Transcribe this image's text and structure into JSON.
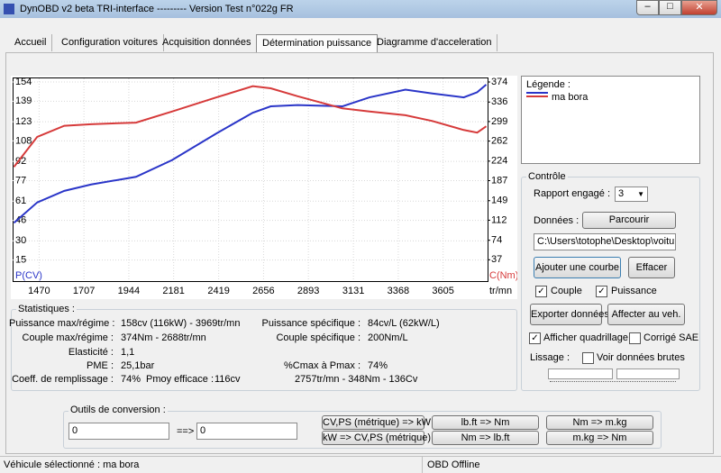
{
  "window": {
    "title": "DynOBD v2 beta TRI-interface --------- Version Test n°022g FR"
  },
  "tabs": [
    "Accueil",
    "Configuration voitures",
    "Acquisition données",
    "Détermination puissance",
    "Diagramme d'acceleration"
  ],
  "active_tab": 3,
  "chart_data": {
    "type": "line",
    "x": [
      1337,
      1460,
      1603,
      1745,
      1982,
      2172,
      2409,
      2599,
      2694,
      2836,
      3073,
      3216,
      3406,
      3548,
      3714,
      3785,
      3833
    ],
    "series": [
      {
        "name": "ma bora",
        "color": "#2a35c8",
        "values": [
          44,
          60,
          69,
          74,
          80,
          93,
          114,
          130,
          135,
          136,
          135,
          142,
          148,
          145,
          142,
          146,
          152
        ]
      },
      {
        "color": "#d63a3a",
        "axis": "y2",
        "values": [
          213,
          270,
          291,
          294,
          297,
          318,
          345,
          366,
          362,
          347,
          324,
          318,
          311,
          300,
          283,
          278,
          290
        ]
      }
    ],
    "xlim": [
      1330,
      3840
    ],
    "xticks": [
      1470,
      1707,
      1944,
      2181,
      2419,
      2656,
      2893,
      3131,
      3368,
      3605
    ],
    "ylim": [
      0,
      154
    ],
    "yticks": [
      15,
      30,
      46,
      61,
      77,
      92,
      108,
      123,
      139,
      154
    ],
    "y2lim": [
      0,
      374
    ],
    "y2ticks": [
      37,
      74,
      112,
      149,
      187,
      224,
      262,
      299,
      336,
      374
    ],
    "x_label": "tr/mn",
    "y_label": "P(CV)",
    "y2_label": "C(Nm)",
    "grid": true,
    "legend_title": "Légende :"
  },
  "controls": {
    "title": "Contrôle",
    "gear_label": "Rapport engagé :",
    "gear_value": "3",
    "data_label": "Données :",
    "browse": "Parcourir",
    "path": "C:\\Users\\totophe\\Desktop\\voiture",
    "add_curve": "Ajouter une courbe",
    "clear": "Effacer",
    "checks": [
      {
        "label": "Couple",
        "checked": true
      },
      {
        "label": "Puissance",
        "checked": true
      },
      {
        "label": "Afficher quadrillage",
        "checked": true
      },
      {
        "label": "Corrigé SAE",
        "checked": false
      },
      {
        "label": "Voir données brutes",
        "checked": false
      }
    ],
    "export": "Exporter données",
    "assign": "Affecter au veh.",
    "smoothing": "Lissage :"
  },
  "stats": {
    "title": "Statistiques :",
    "rows": [
      [
        "Puissance max/régime :",
        "158cv (116kW) - 3969tr/mn"
      ],
      [
        "Couple max/régime :",
        "374Nm - 2688tr/mn"
      ],
      [
        "Elasticité :",
        "1,1"
      ],
      [
        "PME :",
        "25,1bar"
      ],
      [
        "Coeff. de remplissage :",
        "74%"
      ],
      [
        "Pmoy efficace :",
        "116cv"
      ],
      [
        "Puissance spécifique :",
        "84cv/L (62kW/L)"
      ],
      [
        "Couple spécifique :",
        "200Nm/L"
      ],
      [
        "%Cmax à Pmax :",
        "74%"
      ]
    ],
    "note": "2757tr/mn - 348Nm - 136Cv"
  },
  "conversion": {
    "title": "Outils de conversion :",
    "input": "0",
    "arrow": "==>",
    "output": "0",
    "buttons": [
      "CV,PS (métrique) => kW",
      "kW => CV,PS (métrique)",
      "lb.ft => Nm",
      "Nm => lb.ft",
      "Nm => m.kg",
      "m.kg => Nm"
    ]
  },
  "status": {
    "vehicle": "Véhicule sélectionné : ma bora",
    "obd": "OBD Offline"
  }
}
